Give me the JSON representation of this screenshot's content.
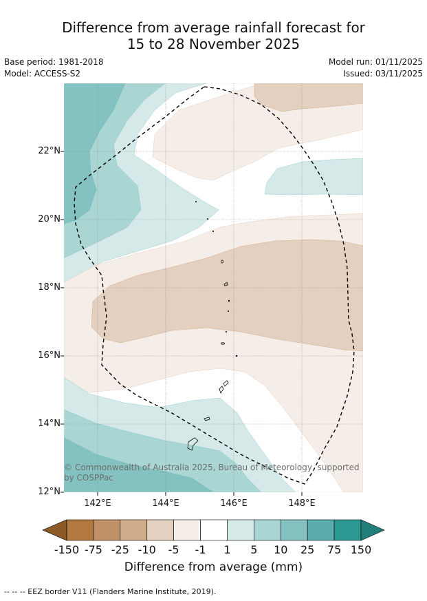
{
  "title_line1": "Difference from average rainfall forecast for",
  "title_line2": "15 to 28 November 2025",
  "base_period": "Base period: 1981-2018",
  "model": "Model: ACCESS-S2",
  "model_run": "Model run: 01/11/2025",
  "issued": "Issued: 03/11/2025",
  "lat_labels": [
    "22°N",
    "20°N",
    "18°N",
    "16°N",
    "14°N",
    "12°N"
  ],
  "lon_labels": [
    "142°E",
    "144°E",
    "146°E",
    "148°E"
  ],
  "copyright": "© Commonwealth of Australia 2025, Bureau of Meteorology, supported by COSPPac",
  "colorbar": {
    "labels": [
      "-150",
      "-75",
      "-25",
      "-10",
      "-5",
      "-1",
      "1",
      "5",
      "10",
      "25",
      "75",
      "150"
    ],
    "colors": [
      "#8c5a26",
      "#b27940",
      "#c09167",
      "#d1ac8a",
      "#e4d0bf",
      "#f5ede7",
      "#ffffff",
      "#d4e9e8",
      "#a9d5d3",
      "#83c2c0",
      "#5aadab",
      "#2e9893",
      "#217f7b"
    ],
    "title": "Difference from average (mm)"
  },
  "footer": "--  --  -- EEZ border V11 (Flanders Marine Institute, 2019)."
}
